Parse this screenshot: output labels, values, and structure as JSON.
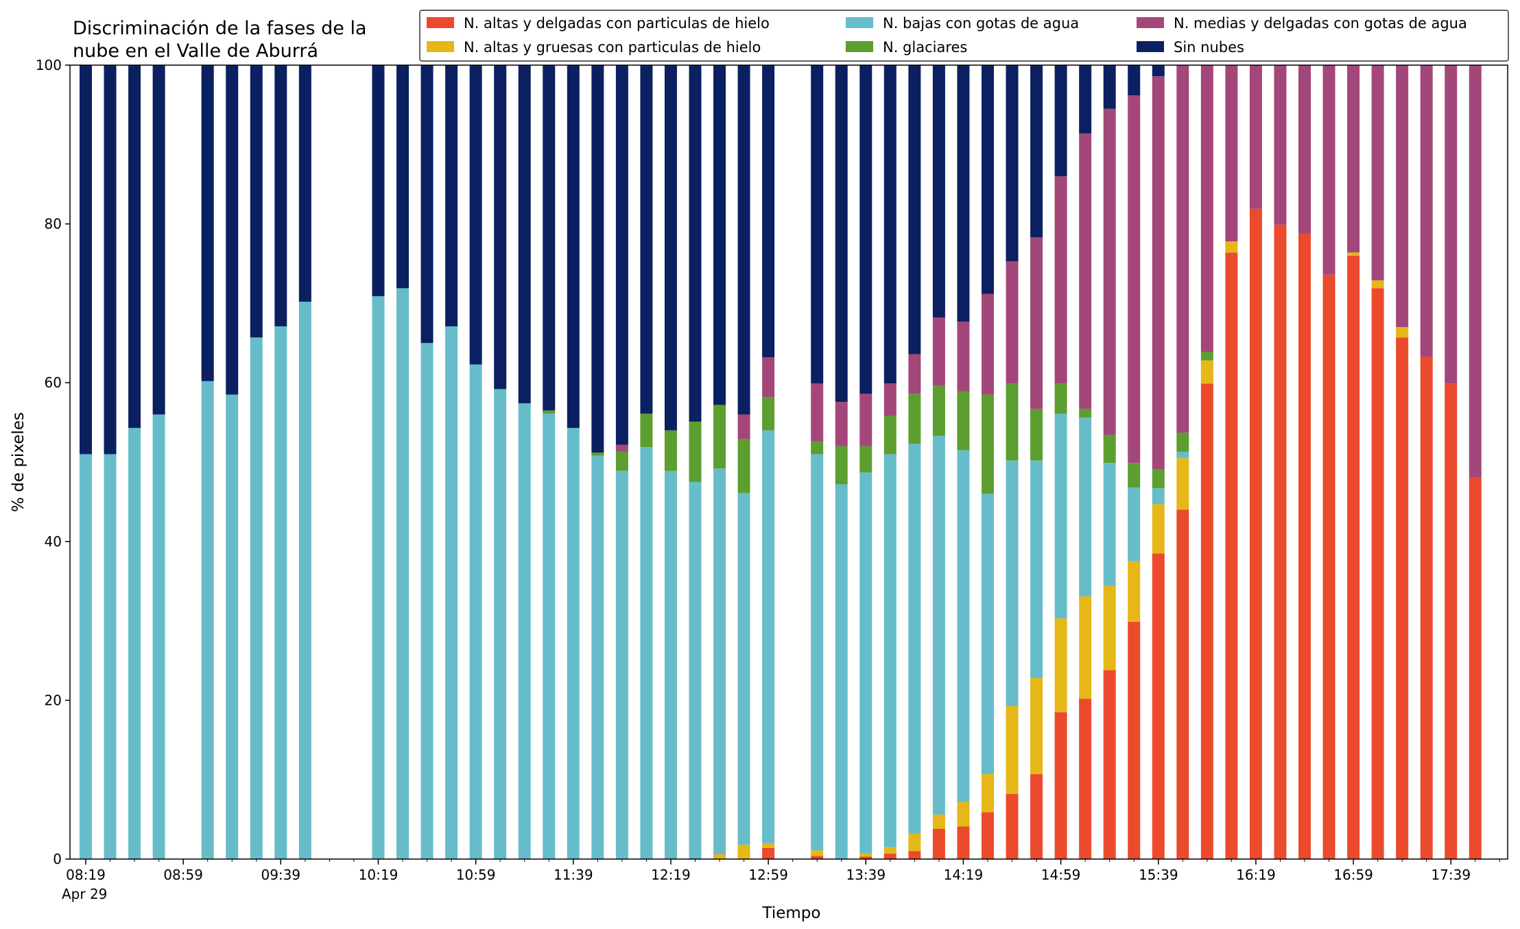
{
  "chart_data": {
    "type": "bar",
    "stacked": true,
    "title_lines": [
      "Discriminación de la fases de la",
      "nube en el Valle de Aburrá"
    ],
    "xlabel": "Tiempo",
    "ylabel": "% de pixeles",
    "ylim": [
      0,
      100
    ],
    "yticks": [
      0,
      20,
      40,
      60,
      80,
      100
    ],
    "x_start": "08:19",
    "x_step_minutes": 10,
    "x_end": "17:59",
    "xtick_labels": [
      "08:19",
      "08:59",
      "09:39",
      "10:19",
      "10:59",
      "11:39",
      "12:19",
      "12:59",
      "13:39",
      "14:19",
      "14:59",
      "15:39",
      "16:19",
      "16:59",
      "17:39"
    ],
    "date_label": "Apr 29",
    "legend_position": "top-right",
    "legend_columns": 3,
    "grid": false,
    "series": [
      {
        "name": "N. altas y delgadas con particulas de hielo",
        "color": "#ec4a2d"
      },
      {
        "name": "N. altas y gruesas con particulas de hielo",
        "color": "#e5b717"
      },
      {
        "name": "N. bajas con gotas de agua",
        "color": "#66bdc9"
      },
      {
        "name": "N. glaciares",
        "color": "#5c9e2f"
      },
      {
        "name": "N. medias y delgadas con gotas de agua",
        "color": "#a3477a"
      },
      {
        "name": "Sin nubes",
        "color": "#0b2060"
      }
    ],
    "order": [
      "N. altas y delgadas con particulas de hielo",
      "N. altas y gruesas con particulas de hielo",
      "N. bajas con gotas de agua",
      "N. glaciares",
      "N. medias y delgadas con gotas de agua",
      "Sin nubes"
    ],
    "bars": [
      {
        "time": "08:19",
        "values": [
          0,
          0,
          51,
          0,
          0,
          49
        ]
      },
      {
        "time": "08:29",
        "values": [
          0,
          0,
          51,
          0,
          0,
          49
        ]
      },
      {
        "time": "08:39",
        "values": [
          0,
          0,
          54.3,
          0,
          0,
          45.7
        ]
      },
      {
        "time": "08:49",
        "values": [
          0,
          0,
          56,
          0,
          0,
          44
        ]
      },
      {
        "time": "09:09",
        "values": [
          0,
          0,
          60.2,
          0,
          0,
          39.8
        ]
      },
      {
        "time": "09:19",
        "values": [
          0,
          0,
          58.5,
          0,
          0,
          41.5
        ]
      },
      {
        "time": "09:29",
        "values": [
          0,
          0,
          65.7,
          0,
          0,
          34.3
        ]
      },
      {
        "time": "09:39",
        "values": [
          0,
          0,
          67.1,
          0,
          0,
          32.9
        ]
      },
      {
        "time": "09:49",
        "values": [
          0,
          0,
          70.2,
          0,
          0,
          29.8
        ]
      },
      {
        "time": "10:19",
        "values": [
          0,
          0,
          70.9,
          0,
          0,
          29.1
        ]
      },
      {
        "time": "10:29",
        "values": [
          0,
          0,
          71.9,
          0,
          0,
          28.1
        ]
      },
      {
        "time": "10:39",
        "values": [
          0,
          0,
          65,
          0,
          0,
          35
        ]
      },
      {
        "time": "10:49",
        "values": [
          0,
          0,
          67.1,
          0,
          0,
          32.9
        ]
      },
      {
        "time": "10:59",
        "values": [
          0,
          0,
          62.3,
          0,
          0,
          37.7
        ]
      },
      {
        "time": "11:09",
        "values": [
          0,
          0,
          59.2,
          0,
          0,
          40.8
        ]
      },
      {
        "time": "11:19",
        "values": [
          0,
          0,
          57.4,
          0,
          0,
          42.6
        ]
      },
      {
        "time": "11:29",
        "values": [
          0,
          0,
          56.1,
          0.4,
          0,
          43.5
        ]
      },
      {
        "time": "11:39",
        "values": [
          0,
          0,
          54.3,
          0,
          0,
          45.7
        ]
      },
      {
        "time": "11:49",
        "values": [
          0,
          0,
          50.8,
          0.4,
          0,
          48.8
        ]
      },
      {
        "time": "11:59",
        "values": [
          0,
          0,
          48.9,
          2.4,
          0.9,
          47.8
        ]
      },
      {
        "time": "12:09",
        "values": [
          0,
          0,
          51.9,
          4.2,
          0,
          43.9
        ]
      },
      {
        "time": "12:19",
        "values": [
          0,
          0,
          48.9,
          5.1,
          0,
          46
        ]
      },
      {
        "time": "12:29",
        "values": [
          0,
          0,
          47.5,
          7.6,
          0,
          44.9
        ]
      },
      {
        "time": "12:39",
        "values": [
          0,
          0.6,
          48.6,
          8,
          0,
          42.8
        ]
      },
      {
        "time": "12:49",
        "values": [
          0,
          1.8,
          44.3,
          6.8,
          3.1,
          44
        ]
      },
      {
        "time": "12:59",
        "values": [
          1.4,
          0.6,
          52,
          4.2,
          5,
          36.8
        ]
      },
      {
        "time": "13:19",
        "values": [
          0.4,
          0.7,
          49.9,
          1.6,
          7.3,
          40.1
        ]
      },
      {
        "time": "13:29",
        "values": [
          0,
          0,
          47.2,
          4.8,
          5.6,
          42.4
        ]
      },
      {
        "time": "13:39",
        "values": [
          0.3,
          0.4,
          48,
          3.3,
          6.6,
          41.4
        ]
      },
      {
        "time": "13:49",
        "values": [
          0.7,
          0.8,
          49.5,
          4.8,
          4.1,
          40.1
        ]
      },
      {
        "time": "13:59",
        "values": [
          1,
          2.2,
          49.1,
          6.3,
          5,
          36.4
        ]
      },
      {
        "time": "14:09",
        "values": [
          3.8,
          1.8,
          47.7,
          6.3,
          8.6,
          31.8
        ]
      },
      {
        "time": "14:19",
        "values": [
          4.1,
          3.1,
          44.3,
          7.4,
          8.8,
          32.3
        ]
      },
      {
        "time": "14:29",
        "values": [
          5.9,
          4.8,
          35.3,
          12.5,
          12.7,
          28.8
        ]
      },
      {
        "time": "14:39",
        "values": [
          8.2,
          11.1,
          30.9,
          9.7,
          15.4,
          24.7
        ]
      },
      {
        "time": "14:49",
        "values": [
          10.7,
          12.1,
          27.4,
          6.5,
          21.6,
          21.7
        ]
      },
      {
        "time": "14:59",
        "values": [
          18.5,
          11.8,
          25.8,
          3.8,
          26.1,
          14
        ]
      },
      {
        "time": "15:09",
        "values": [
          20.2,
          12.9,
          22.5,
          1.1,
          34.7,
          8.6
        ]
      },
      {
        "time": "15:19",
        "values": [
          23.8,
          10.6,
          15.5,
          3.5,
          41.1,
          5.5
        ]
      },
      {
        "time": "15:29",
        "values": [
          29.9,
          7.6,
          9.3,
          3.1,
          46.3,
          3.8
        ]
      },
      {
        "time": "15:39",
        "values": [
          38.5,
          6.2,
          2,
          2.4,
          49.5,
          1.4
        ]
      },
      {
        "time": "15:49",
        "values": [
          44,
          6.5,
          0.8,
          2.4,
          46.3,
          0
        ]
      },
      {
        "time": "15:59",
        "values": [
          59.9,
          2.9,
          0,
          1.1,
          36.1,
          0
        ]
      },
      {
        "time": "16:09",
        "values": [
          76.4,
          1.4,
          0,
          0,
          22.2,
          0
        ]
      },
      {
        "time": "16:19",
        "values": [
          81.9,
          0,
          0,
          0,
          18.1,
          0
        ]
      },
      {
        "time": "16:29",
        "values": [
          79.9,
          0,
          0,
          0,
          20.1,
          0
        ]
      },
      {
        "time": "16:39",
        "values": [
          78.8,
          0,
          0,
          0,
          21.2,
          0
        ]
      },
      {
        "time": "16:49",
        "values": [
          73.6,
          0,
          0,
          0,
          26.4,
          0
        ]
      },
      {
        "time": "16:59",
        "values": [
          76,
          0.4,
          0,
          0,
          23.6,
          0
        ]
      },
      {
        "time": "17:09",
        "values": [
          71.9,
          1,
          0,
          0,
          27.1,
          0
        ]
      },
      {
        "time": "17:19",
        "values": [
          65.7,
          1.3,
          0,
          0,
          33,
          0
        ]
      },
      {
        "time": "17:29",
        "values": [
          63.3,
          0,
          0,
          0,
          36.7,
          0
        ]
      },
      {
        "time": "17:39",
        "values": [
          59.9,
          0,
          0,
          0,
          40.1,
          0
        ]
      },
      {
        "time": "17:49",
        "values": [
          48.1,
          0,
          0,
          0,
          51.9,
          0
        ]
      }
    ]
  }
}
